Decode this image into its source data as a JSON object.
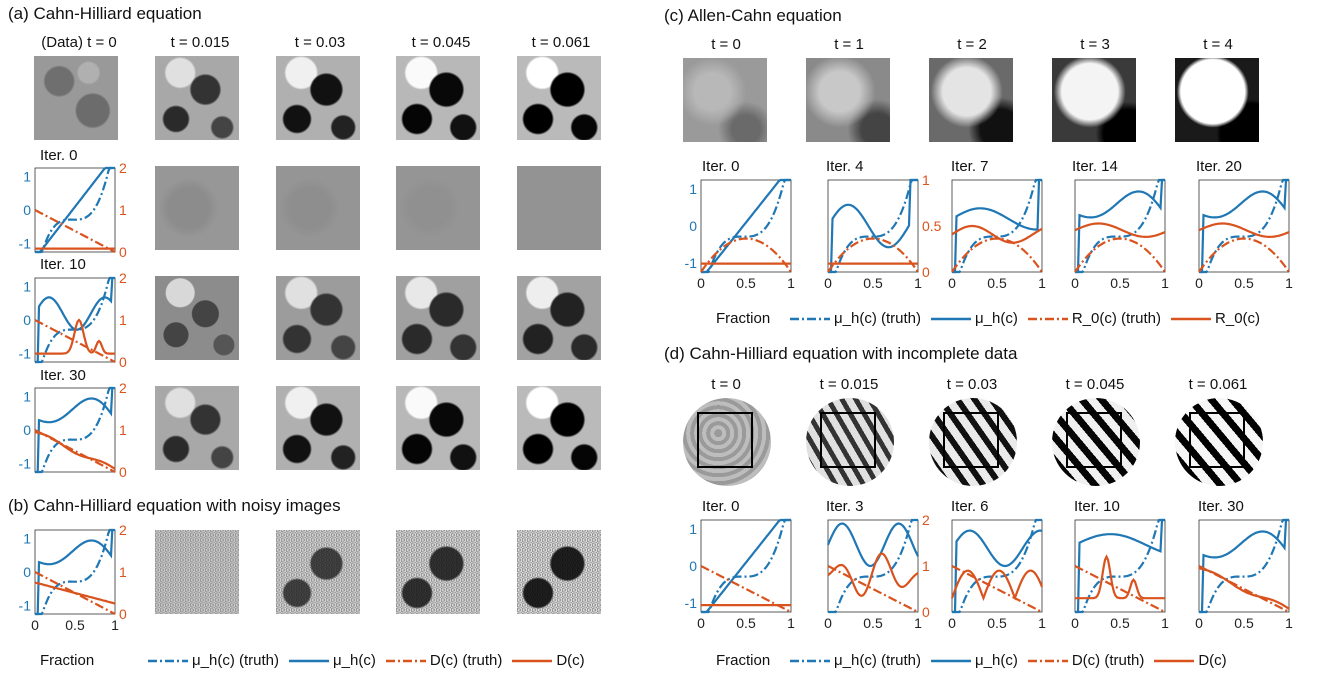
{
  "panels": {
    "a": {
      "title": "(a) Cahn-Hilliard equation",
      "time_labels": [
        "(Data) t = 0",
        "t = 0.015",
        "t = 0.03",
        "t = 0.045",
        "t = 0.061"
      ],
      "iter_labels": [
        "Iter. 0",
        "Iter. 10",
        "Iter. 30"
      ]
    },
    "b": {
      "title": "(b) Cahn-Hilliard equation with noisy images",
      "xlabel": "Fraction",
      "legend": [
        "μ_h(c) (truth)",
        "μ_h(c)",
        "D(c) (truth)",
        "D(c)"
      ]
    },
    "c": {
      "title": "(c) Allen-Cahn equation",
      "time_labels": [
        "t = 0",
        "t = 1",
        "t = 2",
        "t = 3",
        "t = 4"
      ],
      "iter_labels": [
        "Iter. 0",
        "Iter. 4",
        "Iter. 7",
        "Iter. 14",
        "Iter. 20"
      ],
      "xlabel": "Fraction",
      "legend": [
        "μ_h(c) (truth)",
        "μ_h(c)",
        "R_0(c) (truth)",
        "R_0(c)"
      ]
    },
    "d": {
      "title": "(d) Cahn-Hilliard equation with incomplete data",
      "time_labels": [
        "t = 0",
        "t = 0.015",
        "t = 0.03",
        "t = 0.045",
        "t = 0.061"
      ],
      "iter_labels": [
        "Iter. 0",
        "Iter. 3",
        "Iter. 6",
        "Iter. 10",
        "Iter. 30"
      ],
      "xlabel": "Fraction",
      "legend": [
        "μ_h(c) (truth)",
        "μ_h(c)",
        "D(c) (truth)",
        "D(c)"
      ]
    }
  },
  "axis_ticks": {
    "left_blue": [
      "1",
      "0",
      "-1"
    ],
    "right_orange_D": [
      "2",
      "1",
      "0"
    ],
    "right_orange_R": [
      "1",
      "0.5",
      "0"
    ],
    "x": [
      "0",
      "0.5",
      "1"
    ]
  },
  "colors": {
    "blue": "#1f77b4",
    "orange": "#d9531e"
  }
}
